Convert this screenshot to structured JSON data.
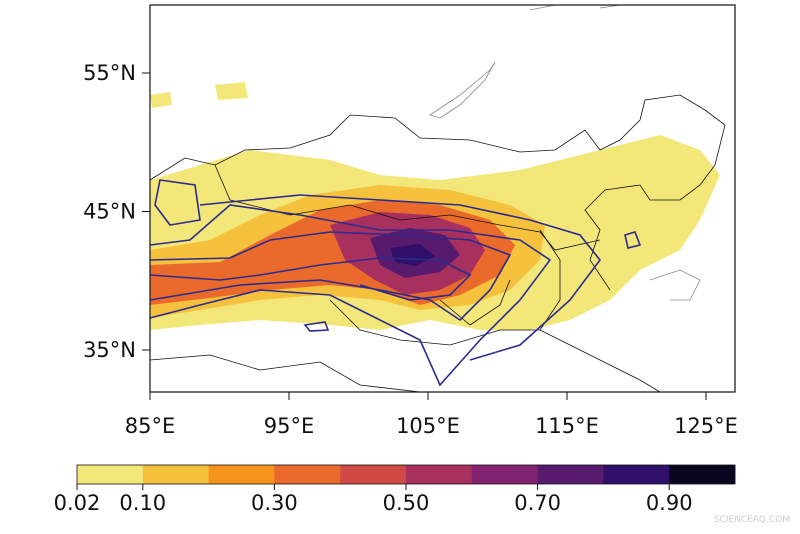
{
  "map": {
    "lat_labels": [
      "55°N",
      "45°N",
      "35°N"
    ],
    "lon_labels": [
      "85°E",
      "95°E",
      "105°E",
      "115°E",
      "125°E"
    ]
  },
  "colorbar": {
    "labels": [
      "0.02",
      "0.10",
      "0.30",
      "0.50",
      "0.70",
      "0.90"
    ],
    "colors": [
      "#f3e77a",
      "#f6c23e",
      "#f6951c",
      "#ea6a2b",
      "#cf4a44",
      "#a8305f",
      "#80226d",
      "#581a6d",
      "#30106a",
      "#0b0620"
    ]
  },
  "watermark": "SCIENCEAQ.COM"
}
